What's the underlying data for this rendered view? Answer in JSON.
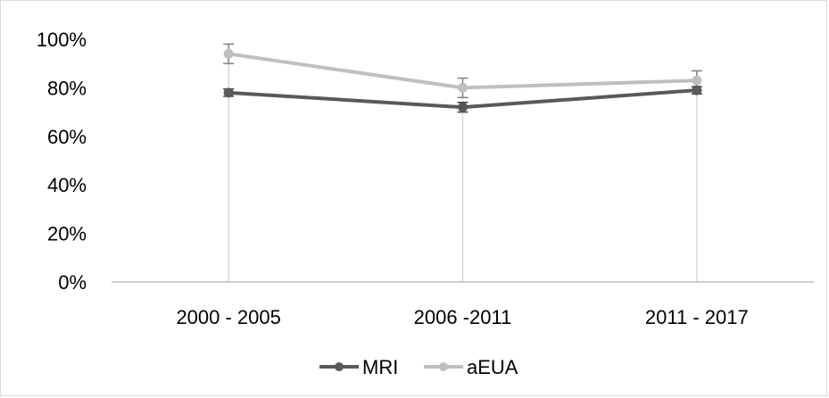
{
  "chart_data": {
    "type": "line",
    "categories": [
      "2000 - 2005",
      "2006 -2011",
      "2011 - 2017"
    ],
    "ylim": [
      0,
      100
    ],
    "yticks": [
      "0%",
      "20%",
      "40%",
      "60%",
      "80%",
      "100%"
    ],
    "ytick_values": [
      0,
      20,
      40,
      60,
      80,
      100
    ],
    "grid": false,
    "drop_lines": true,
    "legend_position": "bottom",
    "series": [
      {
        "name": "MRI",
        "values": [
          78,
          72,
          79
        ],
        "error": [
          1.5,
          2,
          1.5
        ],
        "color": "#595959"
      },
      {
        "name": "aEUA",
        "values": [
          94,
          80,
          83
        ],
        "error": [
          4,
          4,
          4
        ],
        "color": "#bfbfbf"
      }
    ],
    "colors": {
      "axis": "#bfbfbf",
      "drop_line": "#d9d9d9",
      "frame": "#d9d9d9"
    }
  }
}
